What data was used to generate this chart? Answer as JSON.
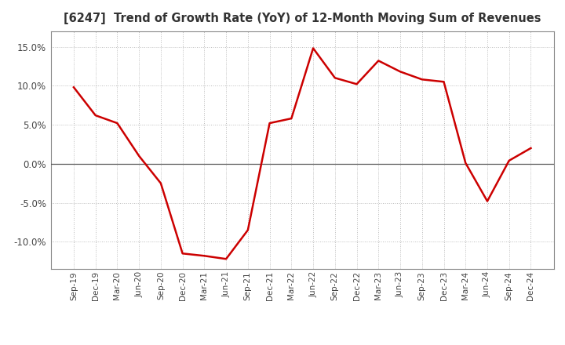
{
  "title": "[6247]  Trend of Growth Rate (YoY) of 12-Month Moving Sum of Revenues",
  "title_fontsize": 10.5,
  "x_labels": [
    "Sep-19",
    "Dec-19",
    "Mar-20",
    "Jun-20",
    "Sep-20",
    "Dec-20",
    "Mar-21",
    "Jun-21",
    "Sep-21",
    "Dec-21",
    "Mar-22",
    "Jun-22",
    "Sep-22",
    "Dec-22",
    "Mar-23",
    "Jun-23",
    "Sep-23",
    "Dec-23",
    "Mar-24",
    "Jun-24",
    "Sep-24",
    "Dec-24"
  ],
  "values": [
    9.8,
    6.2,
    5.2,
    1.0,
    -2.5,
    -11.5,
    -11.8,
    -12.2,
    -8.5,
    5.2,
    5.8,
    14.8,
    11.0,
    10.2,
    13.2,
    11.8,
    10.8,
    10.5,
    0.1,
    -4.8,
    0.4,
    2.0
  ],
  "line_color": "#cc0000",
  "ylim": [
    -13.5,
    17.0
  ],
  "yticks": [
    -10.0,
    -5.0,
    0.0,
    5.0,
    10.0,
    15.0
  ],
  "grid_color": "#bbbbbb",
  "background_color": "#ffffff",
  "border_color": "#888888",
  "zero_line_color": "#555555"
}
